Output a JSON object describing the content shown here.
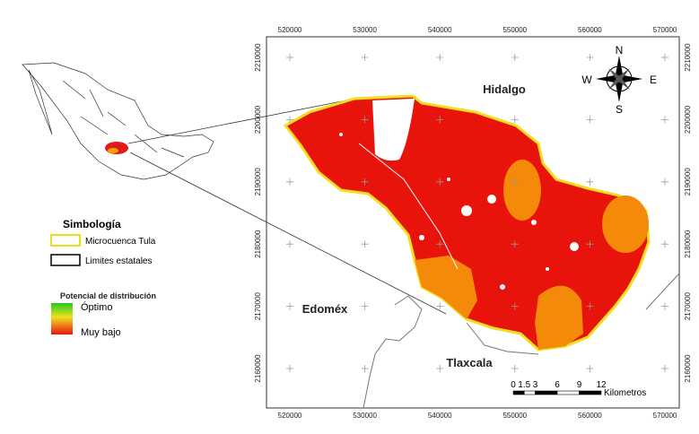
{
  "grid": {
    "eastings": [
      520000,
      530000,
      540000,
      550000,
      560000,
      570000
    ],
    "northings": [
      2210000,
      2200000,
      2190000,
      2180000,
      2170000,
      2160000
    ]
  },
  "places": [
    "Hidalgo",
    "Edoméx",
    "Tlaxcala"
  ],
  "compass": {
    "n": "N",
    "s": "S",
    "e": "E",
    "w": "W"
  },
  "legend": {
    "title": "Simbología",
    "items": [
      "Microcuenca Tula",
      "Limites estatales"
    ],
    "ramp_title": "Potencial de distribución",
    "ramp_high": "Óptimo",
    "ramp_low": "Muy bajo"
  },
  "scale_bar": {
    "ticks": [
      0,
      1.5,
      3,
      6,
      9,
      12
    ],
    "unit": "Kilometros"
  }
}
